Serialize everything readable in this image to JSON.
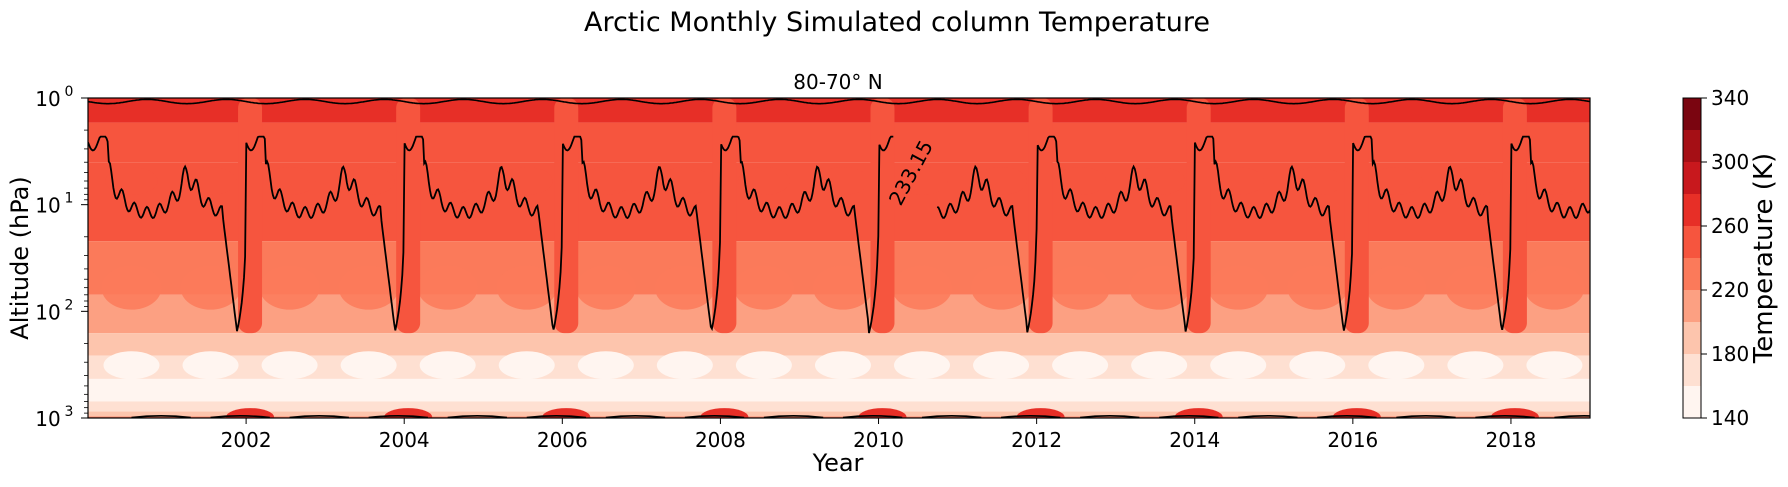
{
  "figure": {
    "title": "Arctic Monthly Simulated column Temperature",
    "subtitle": "80-70° N"
  },
  "chart_data": {
    "type": "heatmap",
    "title": "Arctic Monthly Simulated column Temperature",
    "subtitle": "80-70° N",
    "xlabel": "Year",
    "ylabel": "Altitude (hPa)",
    "x_axis": {
      "type": "time",
      "range": [
        2000.0,
        2019.0
      ],
      "ticks": [
        2002,
        2004,
        2006,
        2008,
        2010,
        2012,
        2014,
        2016,
        2018
      ],
      "tick_labels": [
        "2002",
        "2004",
        "2006",
        "2008",
        "2010",
        "2012",
        "2014",
        "2016",
        "2018"
      ]
    },
    "y_axis": {
      "scale": "log",
      "inverted": true,
      "range": [
        1,
        1000
      ],
      "ticks": [
        1,
        10,
        100,
        1000
      ],
      "tick_labels": [
        "10",
        "10",
        "10",
        "10"
      ],
      "tick_exponents": [
        "0",
        "1",
        "2",
        "3"
      ]
    },
    "colorbar": {
      "label": "Temperature (K)",
      "colormap": "Reds",
      "range": [
        140,
        340
      ],
      "levels": [
        140,
        160,
        180,
        200,
        220,
        240,
        260,
        280,
        300,
        320,
        340
      ],
      "ticks": [
        140,
        180,
        220,
        260,
        300,
        340
      ],
      "tick_labels": [
        "140",
        "180",
        "220",
        "260",
        "300",
        "340"
      ],
      "colors": [
        "#fff5f0",
        "#fee0d2",
        "#fdc5ad",
        "#fca082",
        "#fb7a5a",
        "#f6553e",
        "#e72f27",
        "#c8181d",
        "#a50f15",
        "#7a0510"
      ]
    },
    "contour": {
      "level": 233.15,
      "label": "233.15",
      "color": "#000000"
    },
    "description_values": {
      "winter_cold_pools_low_level_hPa": [
        1000,
        500
      ],
      "stratospheric_cold_intrusions_years": [
        2001.9,
        2003.9,
        2005.9,
        2007.9,
        2009.9,
        2011.9,
        2013.9,
        2015.9,
        2017.9
      ]
    },
    "grid": false,
    "legend": "colorbar-right"
  }
}
